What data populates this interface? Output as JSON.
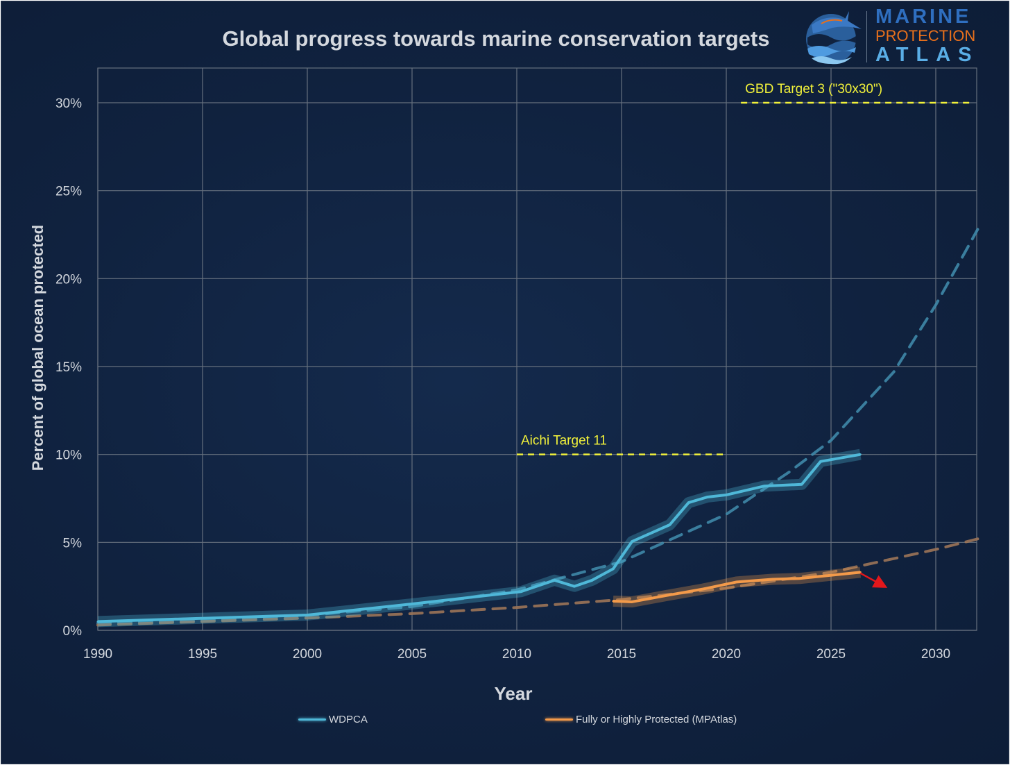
{
  "chart_data": {
    "type": "line",
    "title": "Global progress towards marine conservation targets",
    "xlabel": "Year",
    "ylabel": "Percent of global ocean protected",
    "xlim": [
      1990,
      2032
    ],
    "ylim": [
      0,
      32
    ],
    "x_ticks": [
      1990,
      1995,
      2000,
      2005,
      2010,
      2015,
      2020,
      2025,
      2030
    ],
    "x_tick_labels": [
      "1990",
      "1995",
      "2000",
      "2005",
      "2010",
      "2015",
      "2020",
      "2025",
      "2030"
    ],
    "y_ticks": [
      0,
      5,
      10,
      15,
      20,
      25,
      30
    ],
    "y_tick_labels": [
      "0%",
      "5%",
      "10%",
      "15%",
      "20%",
      "25%",
      "30%"
    ],
    "grid": true,
    "legend_position": "bottom",
    "series": [
      {
        "name": "WDPCA",
        "color": "#4fb8d8",
        "x": [
          1990,
          2000,
          2005,
          2010.2,
          2011.8,
          2012.75,
          2013.6,
          2014.6,
          2015.5,
          2017.3,
          2018.2,
          2019.1,
          2020,
          2021.8,
          2023.6,
          2024.5,
          2026.4
        ],
        "y": [
          0.5,
          0.87,
          1.5,
          2.2,
          2.85,
          2.5,
          2.85,
          3.5,
          5.05,
          6.0,
          7.26,
          7.58,
          7.7,
          8.2,
          8.3,
          9.6,
          10.0
        ]
      },
      {
        "name": "Fully or Highly Protected (MPAtlas)",
        "color": "#f39a4a",
        "x": [
          2014.6,
          2015.5,
          2017.1,
          2018.9,
          2020.5,
          2022.2,
          2023.5,
          2026.4
        ],
        "y": [
          1.66,
          1.62,
          1.97,
          2.35,
          2.75,
          2.9,
          2.95,
          3.3
        ]
      }
    ],
    "trendlines": [
      {
        "name": "WDPCA trend",
        "color": "#3f88a8",
        "x": [
          1990,
          1995,
          2000,
          2005,
          2010,
          2015,
          2020,
          2023,
          2025,
          2028,
          2030,
          2032
        ],
        "y": [
          0.4,
          0.55,
          0.85,
          1.35,
          2.3,
          3.9,
          6.6,
          9.0,
          10.8,
          14.7,
          18.5,
          22.8
        ]
      },
      {
        "name": "MPAtlas trend",
        "color": "#9c7458",
        "x": [
          1990,
          1995,
          2000,
          2005,
          2010,
          2015,
          2020,
          2025,
          2030,
          2032
        ],
        "y": [
          0.3,
          0.5,
          0.7,
          0.95,
          1.3,
          1.75,
          2.4,
          3.3,
          4.6,
          5.2
        ]
      }
    ],
    "targets": [
      {
        "label": "Aichi Target 11",
        "value": 10,
        "x_range": [
          2010,
          2020
        ],
        "color": "#f2f23a"
      },
      {
        "label": "GBD Target 3 (\"30x30\")",
        "value": 30,
        "x_range": [
          2020.7,
          2031.7
        ],
        "color": "#f2f23a"
      }
    ],
    "annotations": [
      {
        "type": "arrow",
        "color": "#e3171b",
        "from": [
          2026.4,
          3.25
        ],
        "to": [
          2027.4,
          2.6
        ]
      }
    ]
  },
  "logo": {
    "line1": "MARINE",
    "line2": "PROTECTION",
    "line3": "ATLAS"
  },
  "colors": {
    "background": "#10223f",
    "grid": "#56606e",
    "text": "#d4d8de"
  }
}
